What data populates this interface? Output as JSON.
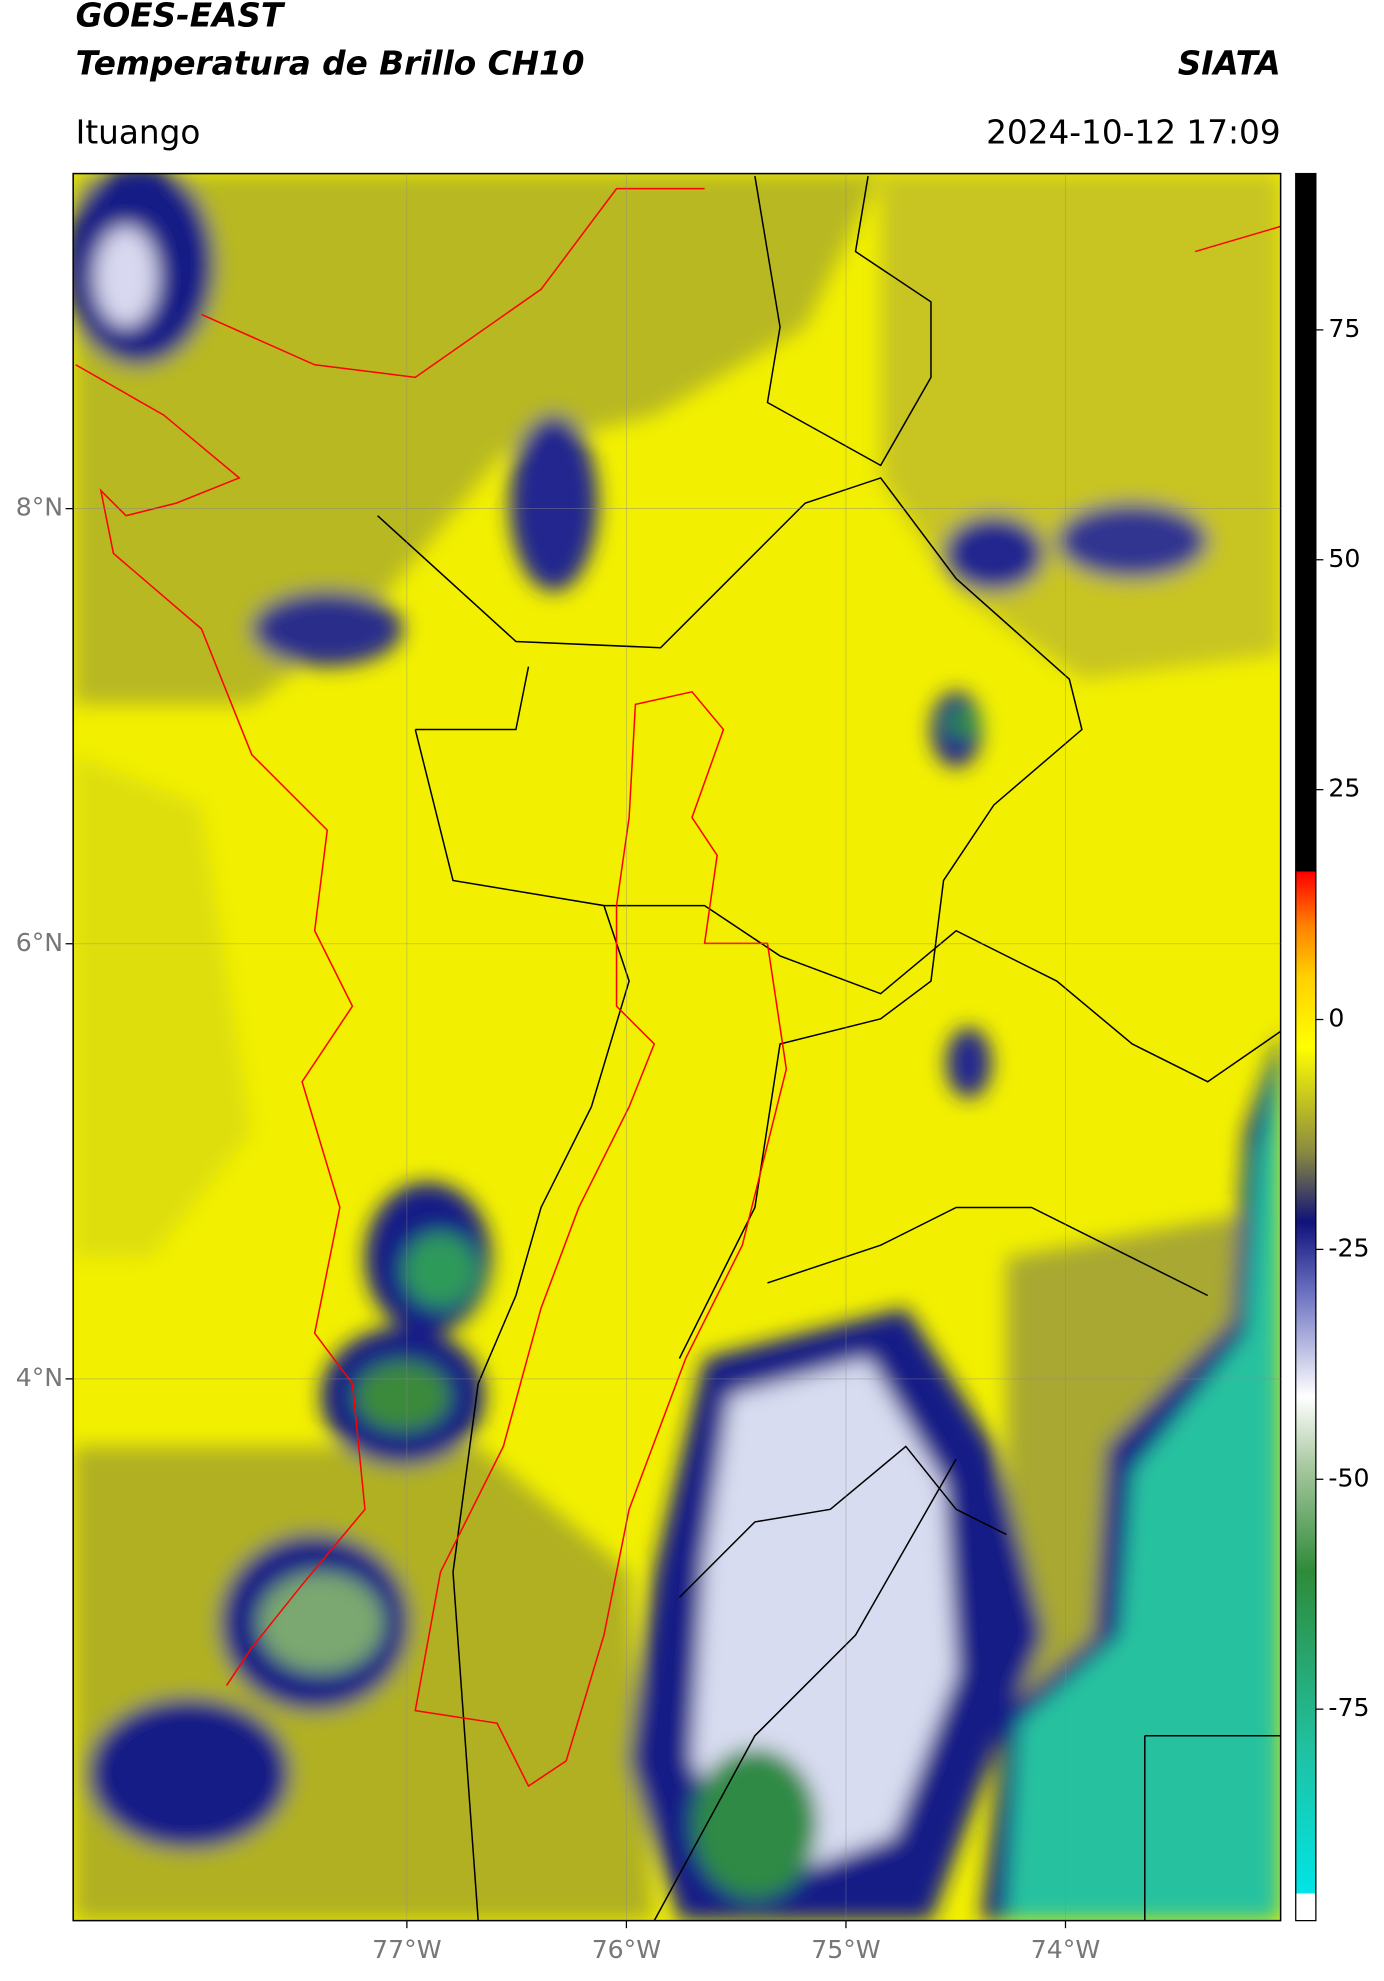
{
  "header": {
    "title": "GOES-EAST",
    "subtitle": "Temperatura de Brillo CH10",
    "source": "SIATA",
    "location": "Ituango",
    "datetime": "2024-10-12 17:09"
  },
  "map": {
    "xlim": [
      -78.52,
      -73.02
    ],
    "ylim": [
      1.51,
      9.54
    ],
    "xticks": [
      {
        "value": -77,
        "label": "77°W"
      },
      {
        "value": -76,
        "label": "76°W"
      },
      {
        "value": -75,
        "label": "75°W"
      },
      {
        "value": -74,
        "label": "74°W"
      }
    ],
    "yticks": [
      {
        "value": 8,
        "label": "8°N"
      },
      {
        "value": 6,
        "label": "6°N"
      },
      {
        "value": 4,
        "label": "4°N"
      }
    ],
    "grid": true
  },
  "colorbar": {
    "lim": [
      -98,
      92
    ],
    "ticks": [
      75,
      50,
      25,
      0,
      -25,
      -50,
      -75
    ]
  }
}
